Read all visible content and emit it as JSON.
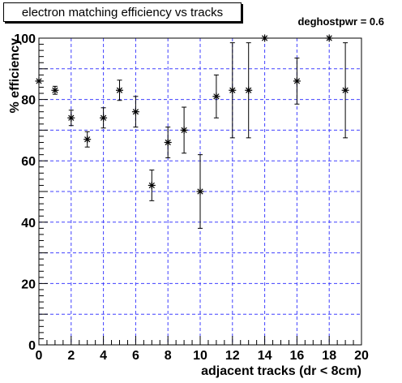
{
  "chart_data": {
    "type": "scatter",
    "title": "electron matching efficiency vs tracks",
    "annotation": "deghostpwr = 0.6",
    "xlabel": "adjacent tracks (dr < 8cm)",
    "ylabel": "% efficiency",
    "xlim": [
      0,
      20
    ],
    "ylim": [
      0,
      100
    ],
    "x_ticks": [
      0,
      2,
      4,
      6,
      8,
      10,
      12,
      14,
      16,
      18,
      20
    ],
    "y_ticks": [
      0,
      20,
      40,
      60,
      80,
      100
    ],
    "grid": true,
    "grid_color": "#4040ff",
    "marker": "star",
    "marker_color": "#000000",
    "points": [
      {
        "x": 0,
        "y": 86,
        "err": 0
      },
      {
        "x": 1,
        "y": 83,
        "err": 1.3
      },
      {
        "x": 2,
        "y": 74,
        "err": 2.5
      },
      {
        "x": 3,
        "y": 67,
        "err": 2.5
      },
      {
        "x": 4,
        "y": 74,
        "err": 3.3
      },
      {
        "x": 5,
        "y": 83,
        "err": 3.3
      },
      {
        "x": 6,
        "y": 76,
        "err": 5
      },
      {
        "x": 7,
        "y": 52,
        "err": 5
      },
      {
        "x": 8,
        "y": 66,
        "err": 5
      },
      {
        "x": 9,
        "y": 70,
        "err": 7.5
      },
      {
        "x": 10,
        "y": 50,
        "err": 12
      },
      {
        "x": 11,
        "y": 81,
        "err": 7
      },
      {
        "x": 12,
        "y": 83,
        "err": 15.5
      },
      {
        "x": 13,
        "y": 83,
        "err": 15.5
      },
      {
        "x": 14,
        "y": 100,
        "err": 0
      },
      {
        "x": 16,
        "y": 86,
        "err": 7.5
      },
      {
        "x": 18,
        "y": 100,
        "err": 0
      },
      {
        "x": 19,
        "y": 83,
        "err": 15.5
      }
    ]
  }
}
